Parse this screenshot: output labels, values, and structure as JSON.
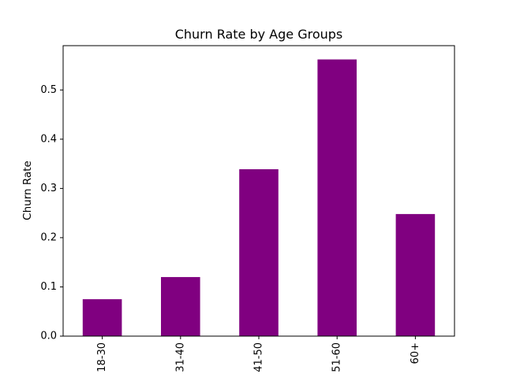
{
  "chart_data": {
    "type": "bar",
    "title": "Churn Rate by Age Groups",
    "xlabel": "",
    "ylabel": "Churn Rate",
    "categories": [
      "18-30",
      "31-40",
      "41-50",
      "51-60",
      "60+"
    ],
    "values": [
      0.075,
      0.12,
      0.339,
      0.562,
      0.248
    ],
    "ylim": [
      0,
      0.59
    ],
    "yticks": [
      0.0,
      0.1,
      0.2,
      0.3,
      0.4,
      0.5
    ],
    "ytick_labels": [
      "0.0",
      "0.1",
      "0.2",
      "0.3",
      "0.4",
      "0.5"
    ],
    "grid": false,
    "legend": "none",
    "bar_color": "#800080",
    "xtick_rotation": "vertical"
  }
}
